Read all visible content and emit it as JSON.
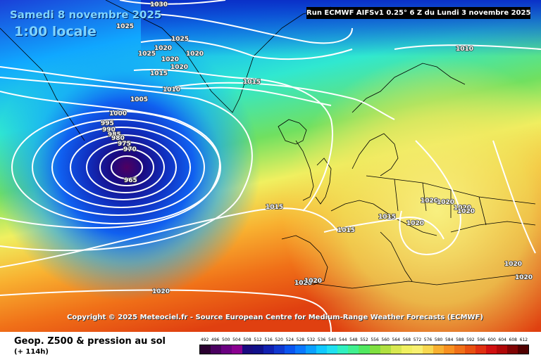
{
  "header": {
    "date": "Samedi 8 novembre 2025",
    "time": "1:00 locale",
    "run": "Run ECMWF AIFSv1 0.25° 6 Z du Lundi 3 novembre 2025"
  },
  "copyright": "Copyright © 2025 Meteociel.fr - Source European Centre for Medium-Range Weather Forecasts (ECMWF)",
  "legend": {
    "title": "Geop. Z500 & pression au sol",
    "subtitle": "(+ 114h)",
    "scale_values": [
      "492",
      "496",
      "500",
      "504",
      "508",
      "512",
      "516",
      "520",
      "524",
      "528",
      "532",
      "536",
      "540",
      "544",
      "548",
      "552",
      "556",
      "560",
      "564",
      "568",
      "572",
      "576",
      "580",
      "584",
      "588",
      "592",
      "596",
      "600",
      "604",
      "608",
      "612"
    ],
    "scale_colors": [
      "#2a0030",
      "#4a0060",
      "#6a0080",
      "#8a0090",
      "#1a0a80",
      "#10108a",
      "#1020b0",
      "#1038d0",
      "#0a55f0",
      "#0a78ff",
      "#0aa0ff",
      "#10c8ff",
      "#20e0f0",
      "#30f0c0",
      "#40f090",
      "#50e860",
      "#80e040",
      "#b0e040",
      "#d8e850",
      "#f0f060",
      "#f8f070",
      "#f8d850",
      "#f8b030",
      "#f89020",
      "#f07018",
      "#e85010",
      "#e03010",
      "#d01010",
      "#b00808",
      "#800404",
      "#500000"
    ]
  },
  "isobars": [
    {
      "value": "1030",
      "pos": "top-center"
    },
    {
      "value": "1025",
      "pos": "greenland-west"
    },
    {
      "value": "1025",
      "pos": "greenland-east"
    },
    {
      "value": "1025",
      "pos": "greenland-mid"
    },
    {
      "value": "1020",
      "pos": "greenland-a"
    },
    {
      "value": "1020",
      "pos": "greenland-b"
    },
    {
      "value": "1020",
      "pos": "greenland-c"
    },
    {
      "value": "1020",
      "pos": "greenland-d"
    },
    {
      "value": "1015",
      "pos": "greenland-south"
    },
    {
      "value": "1010",
      "pos": "greenland-tip"
    },
    {
      "value": "1005",
      "pos": "labrador-sea"
    },
    {
      "value": "1000",
      "pos": "low-outer"
    },
    {
      "value": "995",
      "pos": "low-ring-1"
    },
    {
      "value": "990",
      "pos": "low-ring-2"
    },
    {
      "value": "985",
      "pos": "low-ring-3"
    },
    {
      "value": "980",
      "pos": "low-ring-4"
    },
    {
      "value": "975",
      "pos": "low-ring-5"
    },
    {
      "value": "970",
      "pos": "low-ring-6"
    },
    {
      "value": "965",
      "pos": "low-center"
    },
    {
      "value": "1015",
      "pos": "iceland-east"
    },
    {
      "value": "1010",
      "pos": "norway-sea"
    },
    {
      "value": "1015",
      "pos": "mid-atlantic"
    },
    {
      "value": "1015",
      "pos": "france-west"
    },
    {
      "value": "1015",
      "pos": "alps"
    },
    {
      "value": "1020",
      "pos": "italy-north"
    },
    {
      "value": "1020",
      "pos": "balkans-a"
    },
    {
      "value": "1020",
      "pos": "balkans-b"
    },
    {
      "value": "1020",
      "pos": "balkans-c"
    },
    {
      "value": "1020",
      "pos": "balkans-d"
    },
    {
      "value": "1020",
      "pos": "algeria"
    },
    {
      "value": "1020",
      "pos": "tunisia"
    },
    {
      "value": "1020",
      "pos": "atlantic-south"
    },
    {
      "value": "1020",
      "pos": "black-sea"
    },
    {
      "value": "1020",
      "pos": "turkey"
    }
  ]
}
